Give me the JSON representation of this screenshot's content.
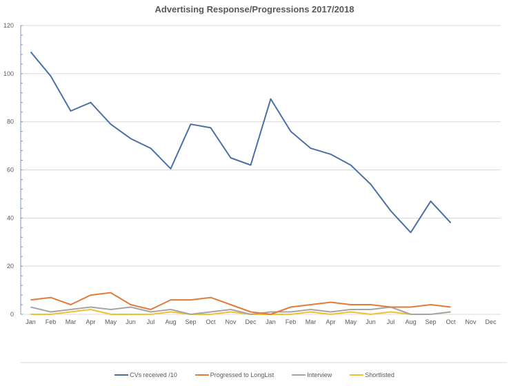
{
  "chart_data": {
    "type": "line",
    "title": "Advertising Response/Progressions 2017/2018",
    "xlabel": "",
    "ylabel": "",
    "ylim": [
      0,
      120
    ],
    "yticks": [
      0,
      20,
      40,
      60,
      80,
      100,
      120
    ],
    "grid": true,
    "legend_position": "bottom",
    "categories": [
      "Jan",
      "Feb",
      "Mar",
      "Apr",
      "May",
      "Jun",
      "Jul",
      "Aug",
      "Sep",
      "Oct",
      "Nov",
      "Dec",
      "Jan",
      "Feb",
      "Mar",
      "Apr",
      "May",
      "Jun",
      "Jul",
      "Aug",
      "Sep",
      "Oct",
      "Nov",
      "Dec"
    ],
    "series": [
      {
        "name": "CVs received /10",
        "color": "#4a6fa5",
        "values": [
          109,
          99,
          84.5,
          88,
          79,
          73,
          69,
          60.5,
          79,
          77.5,
          65,
          62,
          89.5,
          76,
          69,
          66.5,
          62,
          54,
          43,
          34,
          47,
          38,
          null,
          null
        ]
      },
      {
        "name": "Progressed to LongList",
        "color": "#e07b39",
        "values": [
          6,
          7,
          4,
          8,
          9,
          4,
          2,
          6,
          6,
          7,
          4,
          1,
          0,
          3,
          4,
          5,
          4,
          4,
          3,
          3,
          4,
          3,
          null,
          null
        ]
      },
      {
        "name": "Interview",
        "color": "#a5a5a5",
        "values": [
          3,
          1,
          2,
          3,
          2,
          3,
          1,
          2,
          0,
          1,
          2,
          0,
          1,
          1,
          2,
          1,
          2,
          2,
          3,
          0,
          0,
          1,
          null,
          null
        ]
      },
      {
        "name": "Shortlisted",
        "color": "#f2c12e",
        "values": [
          0,
          0,
          1,
          2,
          0,
          0,
          0,
          1,
          0,
          0,
          1,
          0,
          0,
          0,
          1,
          0,
          1,
          0,
          1,
          0,
          0,
          1,
          null,
          null
        ]
      }
    ]
  }
}
